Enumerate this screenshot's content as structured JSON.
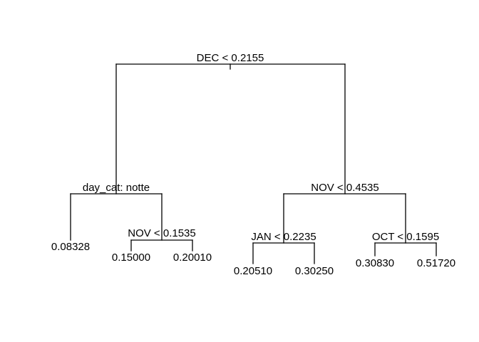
{
  "tree": {
    "root": {
      "split": "DEC < 0.2155"
    },
    "left": {
      "split": "day_cat: notte",
      "leaf": "0.08328",
      "child": {
        "split": "NOV < 0.1535",
        "leaves": [
          "0.15000",
          "0.20010"
        ]
      }
    },
    "right": {
      "split": "NOV < 0.4535",
      "left": {
        "split": "JAN < 0.2235",
        "leaves": [
          "0.20510",
          "0.30250"
        ]
      },
      "right": {
        "split": "OCT < 0.1595",
        "leaves": [
          "0.30830",
          "0.51720"
        ]
      }
    }
  }
}
